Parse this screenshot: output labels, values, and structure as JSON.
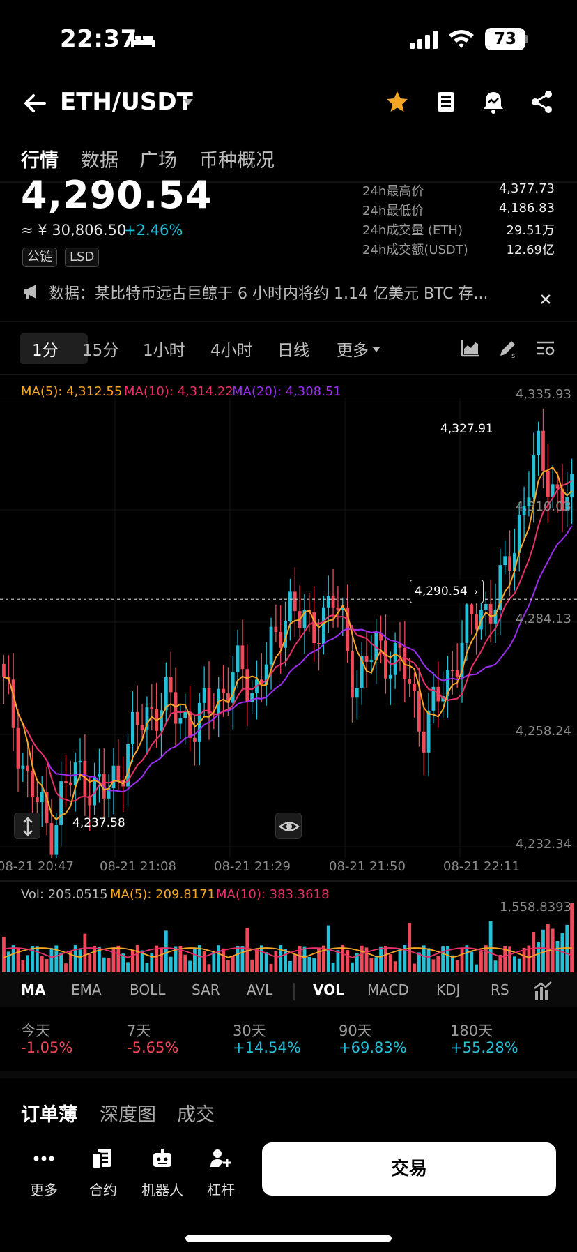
{
  "status": {
    "time": "22:37",
    "battery": "73"
  },
  "header": {
    "pair": "ETH/USDT"
  },
  "tabs": [
    "行情",
    "数据",
    "广场",
    "币种概况"
  ],
  "price": {
    "last": "4,290.54",
    "approx": "≈ ¥ 30,806.50",
    "change": "+2.46%",
    "tags": [
      "公链",
      "LSD"
    ]
  },
  "stats": [
    {
      "label": "24h最高价",
      "value": "4,377.73"
    },
    {
      "label": "24h最低价",
      "value": "4,186.83"
    },
    {
      "label": "24h成交量 (ETH)",
      "value": "29.51万"
    },
    {
      "label": "24h成交额(USDT)",
      "value": "12.69亿"
    }
  ],
  "news": {
    "text": "数据：某比特币远古巨鲸于 6 小时内将约 1.14 亿美元 BTC 存..."
  },
  "intervals": [
    "1分",
    "15分",
    "1小时",
    "4小时",
    "日线",
    "更多"
  ],
  "ma_legend": {
    "ma5": "MA(5): 4,312.55",
    "ma10": "MA(10): 4,314.22",
    "ma20": "MA(20): 4,308.51"
  },
  "colors": {
    "up": "#24c0d8",
    "down": "#f04a5a",
    "ma5": "#f5a623",
    "ma10": "#e8306a",
    "ma20": "#9b2ef0"
  },
  "chart_data": {
    "type": "candlestick",
    "y_ticks": [
      "4,335.93",
      "4,310.03",
      "4,284.13",
      "4,258.24",
      "4,232.34"
    ],
    "ylim": [
      4232.34,
      4335.93
    ],
    "x_ticks": [
      "08-21 20:47",
      "08-21 21:08",
      "08-21 21:29",
      "08-21 21:50",
      "08-21 22:11"
    ],
    "last_price": 4290.54,
    "last_price_label": "4,290.54",
    "high_label": "4,327.91",
    "low_label": "4,237.58",
    "close_path": [
      4270,
      4262,
      4250,
      4244,
      4238,
      4246,
      4250,
      4252,
      4248,
      4246,
      4252,
      4258,
      4262,
      4266,
      4268,
      4265,
      4264,
      4262,
      4266,
      4270,
      4272,
      4274,
      4270,
      4276,
      4280,
      4292,
      4286,
      4282,
      4288,
      4290,
      4282,
      4272,
      4276,
      4280,
      4278,
      4276,
      4268,
      4262,
      4266,
      4272,
      4280,
      4284,
      4288,
      4290,
      4294,
      4304,
      4316,
      4322,
      4318,
      4314,
      4312
    ]
  },
  "volume": {
    "vol": "Vol: 205.0515",
    "ma5": "MA(5): 209.8171",
    "ma10": "MA(10): 383.3618",
    "max_label": "1,558.8393"
  },
  "indicators": [
    "MA",
    "EMA",
    "BOLL",
    "SAR",
    "AVL",
    "VOL",
    "MACD",
    "KDJ",
    "RS"
  ],
  "performance": [
    {
      "label": "今天",
      "value": "-1.05%"
    },
    {
      "label": "7天",
      "value": "-5.65%"
    },
    {
      "label": "30天",
      "value": "+14.54%"
    },
    {
      "label": "90天",
      "value": "+69.83%"
    },
    {
      "label": "180天",
      "value": "+55.28%"
    }
  ],
  "orderbook_tabs": [
    "订单薄",
    "深度图",
    "成交"
  ],
  "bottom_nav": [
    "更多",
    "合约",
    "机器人",
    "杠杆"
  ],
  "trade_button": "交易"
}
